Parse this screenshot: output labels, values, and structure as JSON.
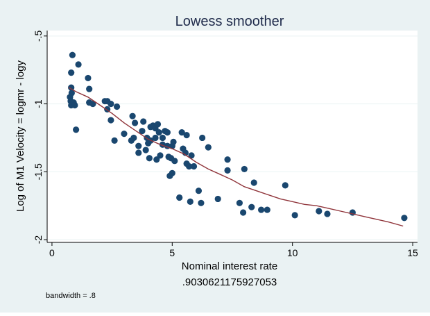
{
  "chart_data": {
    "type": "scatter",
    "title": "Lowess smoother",
    "xlabel": "Nominal interest rate",
    "ylabel": "Log of M1 Velocity = logmr - logy",
    "xlim": [
      -0.2,
      15.2
    ],
    "ylim": [
      -2.02,
      -0.46
    ],
    "x_ticks": [
      0,
      5,
      10,
      15
    ],
    "x_tick_labels": [
      "0",
      "5",
      "10",
      "15"
    ],
    "y_ticks": [
      -0.5,
      -1,
      -1.5,
      -2
    ],
    "y_tick_labels": [
      "-.5",
      "-1",
      "-1.5",
      "-2"
    ],
    "grid": true,
    "subcaption": ".9030621175927053",
    "note": "bandwidth = .8",
    "colors": {
      "points": "#1a476f",
      "smoother": "#90353b",
      "plot_bg": "#ffffff",
      "outer_bg": "#eaf2f3",
      "grid": "#eaf2f3"
    },
    "series": [
      {
        "type": "scatter",
        "points": [
          [
            0.85,
            -0.64
          ],
          [
            0.8,
            -0.77
          ],
          [
            1.1,
            -0.71
          ],
          [
            0.8,
            -0.88
          ],
          [
            0.82,
            -0.92
          ],
          [
            0.75,
            -0.95
          ],
          [
            0.78,
            -0.98
          ],
          [
            0.9,
            -0.99
          ],
          [
            0.8,
            -1.01
          ],
          [
            0.95,
            -1.01
          ],
          [
            1.0,
            -1.19
          ],
          [
            1.5,
            -0.81
          ],
          [
            1.55,
            -0.89
          ],
          [
            1.55,
            -0.99
          ],
          [
            1.7,
            -1.0
          ],
          [
            2.2,
            -0.98
          ],
          [
            2.3,
            -0.98
          ],
          [
            2.3,
            -1.04
          ],
          [
            2.45,
            -1.0
          ],
          [
            2.7,
            -1.02
          ],
          [
            2.45,
            -1.12
          ],
          [
            2.6,
            -1.27
          ],
          [
            3.0,
            -1.22
          ],
          [
            3.35,
            -1.09
          ],
          [
            3.45,
            -1.14
          ],
          [
            3.3,
            -1.27
          ],
          [
            3.4,
            -1.25
          ],
          [
            3.6,
            -1.31
          ],
          [
            3.6,
            -1.36
          ],
          [
            3.75,
            -1.2
          ],
          [
            3.8,
            -1.13
          ],
          [
            3.9,
            -1.34
          ],
          [
            4.0,
            -1.29
          ],
          [
            3.95,
            -1.25
          ],
          [
            4.05,
            -1.4
          ],
          [
            4.1,
            -1.27
          ],
          [
            4.1,
            -1.17
          ],
          [
            4.2,
            -1.16
          ],
          [
            4.3,
            -1.18
          ],
          [
            4.3,
            -1.25
          ],
          [
            4.35,
            -1.41
          ],
          [
            4.4,
            -1.15
          ],
          [
            4.45,
            -1.21
          ],
          [
            4.5,
            -1.38
          ],
          [
            4.6,
            -1.3
          ],
          [
            4.6,
            -1.25
          ],
          [
            4.8,
            -1.31
          ],
          [
            4.7,
            -1.2
          ],
          [
            4.8,
            -1.21
          ],
          [
            4.85,
            -1.39
          ],
          [
            4.9,
            -1.53
          ],
          [
            4.95,
            -1.4
          ],
          [
            5.0,
            -1.31
          ],
          [
            5.0,
            -1.51
          ],
          [
            5.1,
            -1.42
          ],
          [
            5.05,
            -1.28
          ],
          [
            5.3,
            -1.69
          ],
          [
            5.4,
            -1.21
          ],
          [
            5.45,
            -1.33
          ],
          [
            5.55,
            -1.36
          ],
          [
            5.6,
            -1.23
          ],
          [
            5.6,
            -1.44
          ],
          [
            5.7,
            -1.46
          ],
          [
            5.75,
            -1.72
          ],
          [
            5.8,
            -1.38
          ],
          [
            5.9,
            -1.46
          ],
          [
            6.1,
            -1.64
          ],
          [
            6.2,
            -1.73
          ],
          [
            6.25,
            -1.25
          ],
          [
            6.5,
            -1.32
          ],
          [
            6.9,
            -1.7
          ],
          [
            7.3,
            -1.41
          ],
          [
            7.3,
            -1.49
          ],
          [
            7.8,
            -1.73
          ],
          [
            7.95,
            -1.8
          ],
          [
            8.0,
            -1.48
          ],
          [
            8.3,
            -1.76
          ],
          [
            8.4,
            -1.58
          ],
          [
            8.7,
            -1.78
          ],
          [
            8.95,
            -1.78
          ],
          [
            9.7,
            -1.6
          ],
          [
            10.1,
            -1.82
          ],
          [
            11.1,
            -1.79
          ],
          [
            11.45,
            -1.81
          ],
          [
            12.5,
            -1.8
          ],
          [
            14.65,
            -1.84
          ]
        ]
      },
      {
        "type": "line",
        "points": [
          [
            0.7,
            -0.88
          ],
          [
            1.0,
            -0.91
          ],
          [
            1.5,
            -0.95
          ],
          [
            2.0,
            -1.01
          ],
          [
            2.5,
            -1.07
          ],
          [
            3.0,
            -1.14
          ],
          [
            3.5,
            -1.2
          ],
          [
            4.0,
            -1.26
          ],
          [
            4.5,
            -1.3
          ],
          [
            5.0,
            -1.33
          ],
          [
            5.5,
            -1.37
          ],
          [
            6.0,
            -1.43
          ],
          [
            6.5,
            -1.48
          ],
          [
            7.0,
            -1.52
          ],
          [
            7.5,
            -1.56
          ],
          [
            8.0,
            -1.61
          ],
          [
            8.5,
            -1.64
          ],
          [
            9.0,
            -1.67
          ],
          [
            9.5,
            -1.7
          ],
          [
            10.0,
            -1.72
          ],
          [
            10.5,
            -1.74
          ],
          [
            11.0,
            -1.75
          ],
          [
            11.5,
            -1.77
          ],
          [
            12.0,
            -1.79
          ],
          [
            12.5,
            -1.81
          ],
          [
            13.0,
            -1.83
          ],
          [
            13.5,
            -1.85
          ],
          [
            14.0,
            -1.87
          ],
          [
            14.6,
            -1.9
          ]
        ]
      }
    ]
  }
}
